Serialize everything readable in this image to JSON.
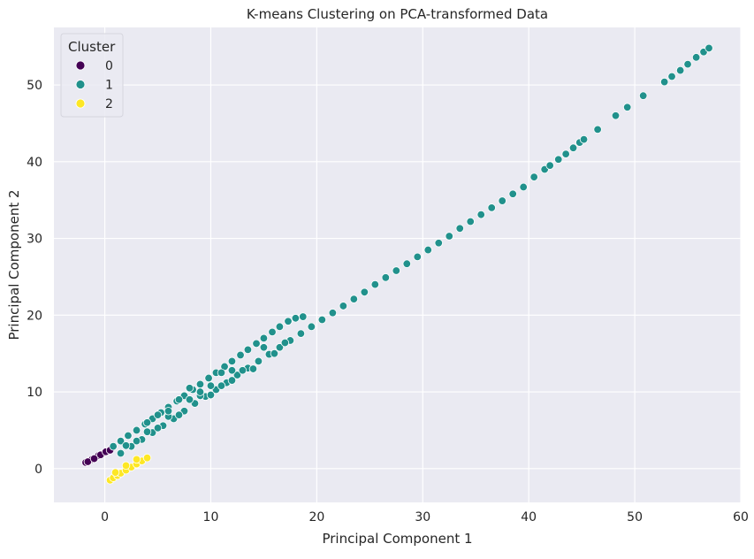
{
  "chart_data": {
    "type": "scatter",
    "title": "K-means Clustering on PCA-transformed Data",
    "xlabel": "Principal Component 1",
    "ylabel": "Principal Component 2",
    "xlim": [
      -4.8,
      60.0
    ],
    "ylim": [
      -4.4,
      57.5
    ],
    "x_ticks": [
      0,
      10,
      20,
      30,
      40,
      50,
      60
    ],
    "y_ticks": [
      0,
      10,
      20,
      30,
      40,
      50
    ],
    "grid": true,
    "legend": {
      "title": "Cluster",
      "position": "top-left",
      "entries": [
        {
          "label": "0",
          "color": "#440154"
        },
        {
          "label": "1",
          "color": "#21918c"
        },
        {
          "label": "2",
          "color": "#fde725"
        }
      ]
    },
    "background_color": "#eaeaf2",
    "series": [
      {
        "name": "0",
        "color": "#440154",
        "points": [
          [
            -1.8,
            0.8
          ],
          [
            -1.5,
            1.0
          ],
          [
            -1.2,
            1.2
          ],
          [
            -0.9,
            1.4
          ],
          [
            -0.6,
            1.7
          ],
          [
            -0.3,
            1.9
          ],
          [
            0.0,
            2.1
          ],
          [
            0.3,
            2.3
          ],
          [
            -1.6,
            0.9
          ],
          [
            -1.0,
            1.3
          ],
          [
            -0.4,
            1.8
          ],
          [
            0.1,
            2.2
          ],
          [
            0.5,
            2.4
          ]
        ]
      },
      {
        "name": "1",
        "color": "#21918c",
        "points": [
          [
            0.8,
            2.9
          ],
          [
            1.5,
            3.6
          ],
          [
            2.2,
            4.3
          ],
          [
            3.0,
            5.0
          ],
          [
            3.8,
            5.8
          ],
          [
            4.5,
            6.5
          ],
          [
            5.3,
            7.3
          ],
          [
            6.0,
            8.0
          ],
          [
            6.8,
            8.8
          ],
          [
            7.5,
            9.5
          ],
          [
            8.3,
            10.3
          ],
          [
            9.0,
            11.0
          ],
          [
            9.8,
            11.8
          ],
          [
            10.5,
            12.5
          ],
          [
            11.3,
            13.3
          ],
          [
            12.0,
            14.0
          ],
          [
            12.8,
            14.8
          ],
          [
            13.5,
            15.5
          ],
          [
            14.3,
            16.3
          ],
          [
            15.0,
            17.0
          ],
          [
            15.8,
            17.8
          ],
          [
            16.5,
            18.5
          ],
          [
            17.3,
            19.2
          ],
          [
            18.0,
            19.6
          ],
          [
            18.7,
            19.8
          ],
          [
            1.5,
            2.0
          ],
          [
            2.5,
            2.9
          ],
          [
            3.5,
            3.8
          ],
          [
            4.5,
            4.7
          ],
          [
            5.5,
            5.6
          ],
          [
            6.5,
            6.5
          ],
          [
            7.5,
            7.5
          ],
          [
            8.5,
            8.5
          ],
          [
            9.5,
            9.4
          ],
          [
            10.5,
            10.3
          ],
          [
            11.5,
            11.2
          ],
          [
            12.5,
            12.2
          ],
          [
            13.5,
            13.1
          ],
          [
            14.5,
            14.0
          ],
          [
            15.5,
            14.9
          ],
          [
            16.5,
            15.8
          ],
          [
            17.5,
            16.7
          ],
          [
            18.5,
            17.6
          ],
          [
            19.5,
            18.5
          ],
          [
            20.5,
            19.4
          ],
          [
            21.5,
            20.3
          ],
          [
            22.5,
            21.2
          ],
          [
            23.5,
            22.1
          ],
          [
            24.5,
            23.0
          ],
          [
            25.5,
            24.0
          ],
          [
            26.5,
            24.9
          ],
          [
            27.5,
            25.8
          ],
          [
            28.5,
            26.7
          ],
          [
            29.5,
            27.6
          ],
          [
            30.5,
            28.5
          ],
          [
            31.5,
            29.4
          ],
          [
            32.5,
            30.3
          ],
          [
            33.5,
            31.3
          ],
          [
            34.5,
            32.2
          ],
          [
            35.5,
            33.1
          ],
          [
            36.5,
            34.0
          ],
          [
            37.5,
            34.9
          ],
          [
            38.5,
            35.8
          ],
          [
            39.5,
            36.7
          ],
          [
            40.5,
            38.0
          ],
          [
            41.5,
            39.0
          ],
          [
            42.0,
            39.5
          ],
          [
            42.8,
            40.3
          ],
          [
            43.5,
            41.0
          ],
          [
            44.2,
            41.8
          ],
          [
            44.8,
            42.5
          ],
          [
            45.2,
            42.9
          ],
          [
            46.5,
            44.2
          ],
          [
            48.2,
            46.0
          ],
          [
            49.3,
            47.1
          ],
          [
            50.8,
            48.6
          ],
          [
            52.8,
            50.4
          ],
          [
            53.5,
            51.1
          ],
          [
            54.3,
            51.9
          ],
          [
            55.0,
            52.7
          ],
          [
            55.8,
            53.6
          ],
          [
            56.5,
            54.3
          ],
          [
            57.0,
            54.8
          ],
          [
            2.0,
            3.0
          ],
          [
            3.0,
            3.6
          ],
          [
            4.0,
            4.8
          ],
          [
            5.0,
            5.3
          ],
          [
            6.0,
            6.8
          ],
          [
            7.0,
            7.0
          ],
          [
            8.0,
            9.0
          ],
          [
            9.0,
            9.5
          ],
          [
            10.0,
            10.8
          ],
          [
            11.0,
            10.8
          ],
          [
            12.0,
            12.8
          ],
          [
            4.0,
            6.0
          ],
          [
            5.0,
            7.0
          ],
          [
            6.0,
            7.5
          ],
          [
            7.0,
            9.0
          ],
          [
            8.0,
            10.5
          ],
          [
            9.0,
            10.0
          ],
          [
            10.0,
            9.6
          ],
          [
            11.0,
            12.5
          ],
          [
            12.0,
            11.5
          ],
          [
            13.0,
            12.8
          ],
          [
            14.0,
            13.0
          ],
          [
            15.0,
            15.8
          ],
          [
            16.0,
            15.0
          ],
          [
            17.0,
            16.4
          ]
        ]
      },
      {
        "name": "2",
        "color": "#fde725",
        "points": [
          [
            0.5,
            -1.5
          ],
          [
            0.8,
            -1.2
          ],
          [
            1.2,
            -0.9
          ],
          [
            1.5,
            -0.6
          ],
          [
            2.0,
            -0.2
          ],
          [
            2.5,
            0.2
          ],
          [
            3.0,
            0.6
          ],
          [
            3.5,
            1.0
          ],
          [
            4.0,
            1.4
          ],
          [
            1.0,
            -0.5
          ],
          [
            2.0,
            0.4
          ],
          [
            3.0,
            1.2
          ]
        ]
      }
    ]
  }
}
